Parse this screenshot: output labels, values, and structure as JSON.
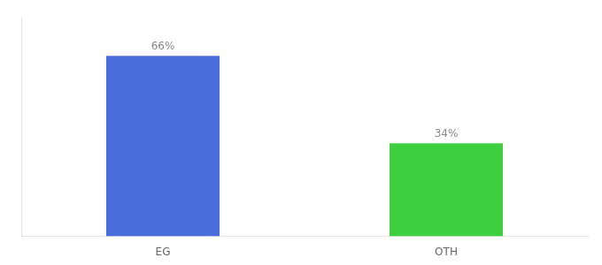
{
  "chart_data": {
    "type": "bar",
    "categories": [
      "EG",
      "OTH"
    ],
    "values": [
      66,
      34
    ],
    "value_labels": [
      "66%",
      "34%"
    ],
    "data_labels": true,
    "colors": [
      "#4a6edb",
      "#3ecf3e"
    ],
    "ylim": [
      0,
      80
    ],
    "grid": false,
    "tick_labels": "x"
  }
}
